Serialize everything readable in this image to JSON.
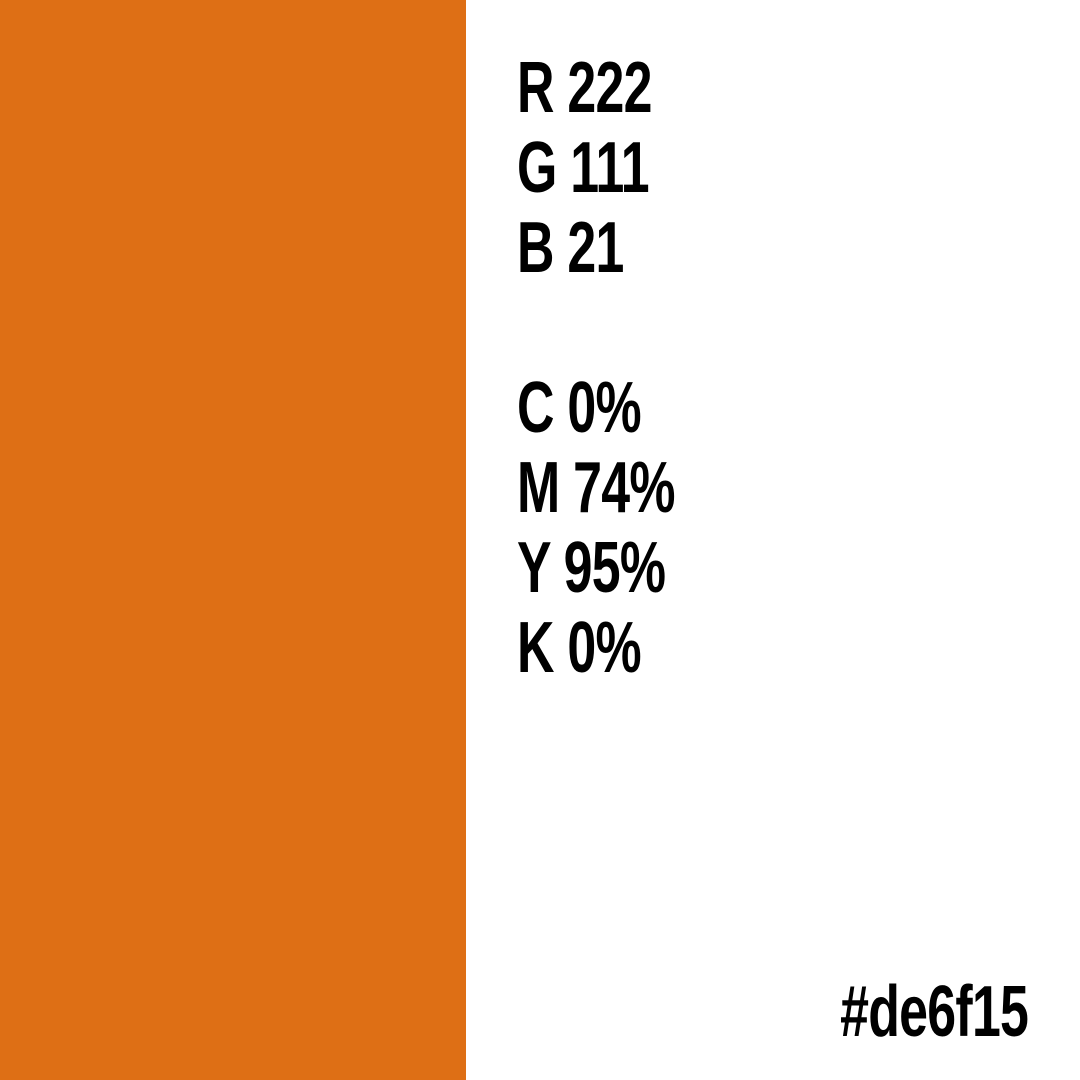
{
  "swatch": {
    "color": "#de6f15"
  },
  "rgb": {
    "r": "R 222",
    "g": "G 111",
    "b": "B 21"
  },
  "cmyk": {
    "c": "C 0%",
    "m": "M 74%",
    "y": "Y 95%",
    "k": "K 0%"
  },
  "hex": "#de6f15"
}
